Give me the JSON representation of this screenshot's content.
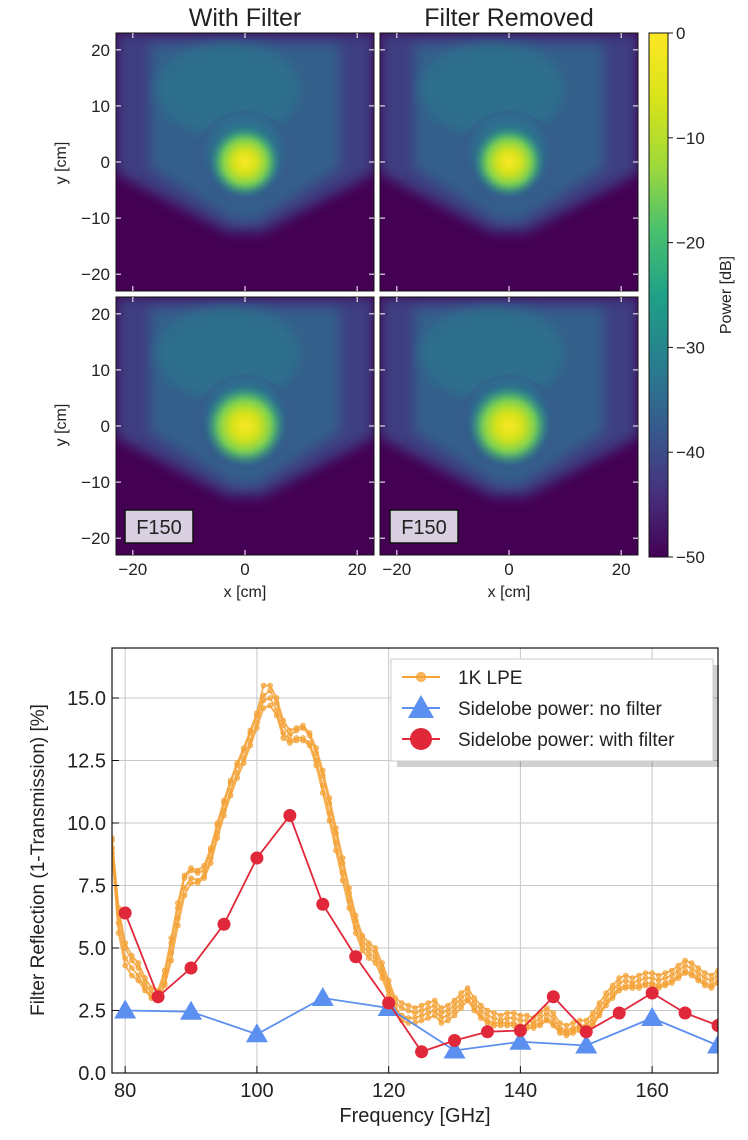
{
  "chart_data": [
    {
      "type": "heatmap",
      "titles": [
        "With Filter",
        "Filter Removed"
      ],
      "xlabel": "x [cm]",
      "ylabel": "y [cm]",
      "xlim": [
        -23,
        23
      ],
      "ylim": [
        -23,
        23
      ],
      "xticks": [
        -20,
        0,
        20
      ],
      "yticks": [
        -20,
        -10,
        0,
        10,
        20
      ],
      "panel_label": "F150",
      "colorbar": {
        "label": "Power [dB]",
        "range": [
          -50,
          0
        ],
        "ticks": [
          0,
          -10,
          -20,
          -30,
          -40,
          -50
        ],
        "colormap": "viridis"
      }
    },
    {
      "type": "line",
      "xlabel": "Frequency [GHz]",
      "ylabel": "Filter Reflection (1-Transmission) [%]",
      "xlim": [
        78,
        170
      ],
      "ylim": [
        0,
        17
      ],
      "xticks": [
        80,
        100,
        120,
        140,
        160
      ],
      "yticks": [
        0.0,
        2.5,
        5.0,
        7.5,
        10.0,
        12.5,
        15.0
      ],
      "grid": true,
      "legend_position": "top-right",
      "lpe_curves": [
        {
          "x": [
            78,
            79,
            80,
            81,
            82,
            83,
            84,
            85,
            86,
            87,
            88,
            89,
            90,
            91,
            92,
            93,
            94,
            95,
            96,
            97,
            98,
            99,
            100,
            101,
            102,
            103,
            104,
            105,
            106,
            107,
            108,
            109,
            110,
            111,
            112,
            113,
            114,
            115,
            116,
            117,
            118,
            119,
            120,
            121,
            122,
            123,
            124,
            125,
            126,
            127,
            128,
            129,
            130,
            131,
            132,
            133,
            134,
            135,
            136,
            137,
            138,
            139,
            140,
            141,
            142,
            143,
            144,
            145,
            146,
            147,
            148,
            149,
            150,
            151,
            152,
            153,
            154,
            155,
            156,
            157,
            158,
            159,
            160,
            161,
            162,
            163,
            164,
            165,
            166,
            167,
            168,
            169,
            170
          ],
          "values": [
            9.3,
            6.4,
            5.0,
            4.5,
            4.2,
            3.6,
            3.2,
            3.1,
            3.9,
            5.2,
            6.6,
            7.8,
            8.1,
            8.0,
            8.1,
            8.9,
            9.9,
            10.8,
            11.6,
            12.3,
            12.9,
            13.6,
            14.3,
            15.1,
            15.3,
            14.8,
            13.9,
            13.5,
            13.7,
            13.8,
            13.5,
            12.8,
            11.9,
            10.8,
            9.6,
            8.4,
            7.2,
            6.1,
            5.3,
            5.0,
            4.8,
            4.2,
            3.5,
            2.8,
            2.6,
            2.5,
            2.4,
            2.5,
            2.6,
            2.7,
            2.4,
            2.5,
            2.7,
            3.0,
            3.2,
            2.8,
            2.5,
            2.3,
            2.2,
            2.1,
            2.2,
            2.2,
            2.1,
            2.1,
            2.0,
            2.2,
            2.4,
            2.2,
            1.8,
            1.7,
            1.8,
            1.9,
            1.9,
            2.2,
            2.6,
            3.0,
            3.3,
            3.6,
            3.7,
            3.6,
            3.7,
            3.8,
            3.8,
            3.7,
            3.8,
            3.9,
            4.1,
            4.3,
            4.2,
            4.0,
            3.8,
            3.7,
            3.9
          ]
        },
        {
          "x": [
            78,
            79,
            80,
            81,
            82,
            83,
            84,
            85,
            86,
            87,
            88,
            89,
            90,
            91,
            92,
            93,
            94,
            95,
            96,
            97,
            98,
            99,
            100,
            101,
            102,
            103,
            104,
            105,
            106,
            107,
            108,
            109,
            110,
            111,
            112,
            113,
            114,
            115,
            116,
            117,
            118,
            119,
            120,
            121,
            122,
            123,
            124,
            125,
            126,
            127,
            128,
            129,
            130,
            131,
            132,
            133,
            134,
            135,
            136,
            137,
            138,
            139,
            140,
            141,
            142,
            143,
            144,
            145,
            146,
            147,
            148,
            149,
            150,
            151,
            152,
            153,
            154,
            155,
            156,
            157,
            158,
            159,
            160,
            161,
            162,
            163,
            164,
            165,
            166,
            167,
            168,
            169,
            170
          ],
          "values": [
            9.0,
            6.0,
            4.6,
            4.2,
            3.9,
            3.4,
            3.0,
            2.9,
            3.6,
            4.8,
            6.2,
            7.4,
            7.8,
            7.7,
            7.9,
            8.6,
            9.6,
            10.5,
            11.3,
            12.0,
            12.6,
            13.3,
            14.0,
            14.9,
            15.0,
            14.5,
            13.6,
            13.3,
            13.4,
            13.4,
            13.2,
            12.5,
            11.5,
            10.4,
            9.2,
            8.0,
            6.9,
            5.8,
            5.1,
            4.8,
            4.6,
            4.0,
            3.3,
            2.6,
            2.3,
            2.2,
            2.2,
            2.3,
            2.4,
            2.5,
            2.2,
            2.3,
            2.5,
            2.8,
            3.0,
            2.6,
            2.3,
            2.1,
            2.0,
            2.0,
            2.0,
            2.0,
            1.9,
            1.9,
            1.9,
            2.0,
            2.2,
            2.0,
            1.7,
            1.6,
            1.7,
            1.8,
            1.8,
            2.0,
            2.4,
            2.8,
            3.1,
            3.4,
            3.5,
            3.5,
            3.5,
            3.6,
            3.6,
            3.5,
            3.6,
            3.7,
            3.9,
            4.1,
            4.0,
            3.8,
            3.6,
            3.5,
            3.7
          ]
        },
        {
          "x": [
            78,
            79,
            80,
            81,
            82,
            83,
            84,
            85,
            86,
            87,
            88,
            89,
            90,
            91,
            92,
            93,
            94,
            95,
            96,
            97,
            98,
            99,
            100,
            101,
            102,
            103,
            104,
            105,
            106,
            107,
            108,
            109,
            110,
            111,
            112,
            113,
            114,
            115,
            116,
            117,
            118,
            119,
            120,
            121,
            122,
            123,
            124,
            125,
            126,
            127,
            128,
            129,
            130,
            131,
            132,
            133,
            134,
            135,
            136,
            137,
            138,
            139,
            140,
            141,
            142,
            143,
            144,
            145,
            146,
            147,
            148,
            149,
            150,
            151,
            152,
            153,
            154,
            155,
            156,
            157,
            158,
            159,
            160,
            161,
            162,
            163,
            164,
            165,
            166,
            167,
            168,
            169,
            170
          ],
          "values": [
            8.8,
            5.6,
            4.3,
            3.9,
            3.7,
            3.3,
            3.0,
            3.0,
            3.5,
            4.5,
            5.9,
            7.1,
            7.6,
            7.6,
            7.8,
            8.4,
            9.4,
            10.3,
            11.1,
            11.8,
            12.4,
            13.1,
            13.8,
            14.6,
            14.7,
            14.3,
            13.4,
            13.2,
            13.3,
            13.3,
            13.1,
            12.3,
            11.2,
            10.1,
            8.9,
            7.7,
            6.6,
            5.6,
            4.9,
            4.6,
            4.4,
            3.8,
            3.1,
            2.4,
            2.1,
            2.0,
            2.0,
            2.1,
            2.2,
            2.3,
            2.0,
            2.1,
            2.3,
            2.6,
            2.9,
            2.5,
            2.2,
            2.0,
            1.9,
            1.9,
            1.9,
            1.9,
            1.8,
            1.8,
            1.8,
            1.9,
            2.1,
            1.9,
            1.6,
            1.5,
            1.6,
            1.7,
            1.7,
            1.9,
            2.3,
            2.7,
            3.0,
            3.3,
            3.4,
            3.4,
            3.4,
            3.5,
            3.5,
            3.4,
            3.5,
            3.6,
            3.8,
            4.0,
            3.9,
            3.7,
            3.5,
            3.4,
            3.6
          ]
        },
        {
          "x": [
            78,
            79,
            80,
            81,
            82,
            83,
            84,
            85,
            86,
            87,
            88,
            89,
            90,
            91,
            92,
            93,
            94,
            95,
            96,
            97,
            98,
            99,
            100,
            101,
            102,
            103,
            104,
            105,
            106,
            107,
            108,
            109,
            110,
            111,
            112,
            113,
            114,
            115,
            116,
            117,
            118,
            119,
            120,
            121,
            122,
            123,
            124,
            125,
            126,
            127,
            128,
            129,
            130,
            131,
            132,
            133,
            134,
            135,
            136,
            137,
            138,
            139,
            140,
            141,
            142,
            143,
            144,
            145,
            146,
            147,
            148,
            149,
            150,
            151,
            152,
            153,
            154,
            155,
            156,
            157,
            158,
            159,
            160,
            161,
            162,
            163,
            164,
            165,
            166,
            167,
            168,
            169,
            170
          ],
          "values": [
            9.4,
            6.6,
            5.2,
            4.7,
            4.4,
            3.8,
            3.4,
            3.3,
            4.1,
            5.4,
            6.8,
            7.9,
            8.2,
            8.1,
            8.3,
            9.0,
            10.0,
            10.9,
            11.7,
            12.4,
            13.0,
            13.7,
            14.4,
            15.5,
            15.5,
            15.0,
            14.1,
            13.7,
            13.8,
            13.9,
            13.6,
            13.0,
            12.1,
            11.0,
            9.8,
            8.6,
            7.4,
            6.3,
            5.5,
            5.2,
            5.0,
            4.4,
            3.7,
            3.0,
            2.8,
            2.7,
            2.6,
            2.7,
            2.8,
            2.9,
            2.6,
            2.7,
            2.9,
            3.2,
            3.4,
            3.0,
            2.7,
            2.5,
            2.4,
            2.3,
            2.4,
            2.4,
            2.3,
            2.3,
            2.2,
            2.4,
            2.6,
            2.4,
            2.0,
            1.9,
            2.0,
            2.1,
            2.1,
            2.4,
            2.8,
            3.2,
            3.5,
            3.8,
            3.9,
            3.8,
            3.9,
            4.0,
            4.0,
            3.9,
            4.0,
            4.1,
            4.3,
            4.5,
            4.4,
            4.2,
            4.0,
            3.9,
            4.1
          ]
        }
      ],
      "series": [
        {
          "name": "1K LPE",
          "color": "#f4a236",
          "marker": "small-circle"
        },
        {
          "name": "Sidelobe power: no filter",
          "color": "#5b8ff0",
          "marker": "triangle",
          "x": [
            80,
            90,
            100,
            110,
            120,
            130,
            140,
            150,
            160,
            170
          ],
          "values": [
            2.5,
            2.45,
            1.55,
            3.0,
            2.6,
            0.9,
            1.25,
            1.1,
            2.2,
            1.1
          ]
        },
        {
          "name": "Sidelobe power: with filter",
          "color": "#e0283a",
          "marker": "circle",
          "x": [
            80,
            85,
            90,
            95,
            100,
            105,
            110,
            115,
            120,
            125,
            130,
            135,
            140,
            145,
            150,
            155,
            160,
            165,
            170
          ],
          "values": [
            6.4,
            3.05,
            4.2,
            5.95,
            8.6,
            10.3,
            6.75,
            4.65,
            2.8,
            0.85,
            1.3,
            1.65,
            1.7,
            3.05,
            1.65,
            2.4,
            3.2,
            2.4,
            1.9
          ]
        }
      ]
    }
  ]
}
